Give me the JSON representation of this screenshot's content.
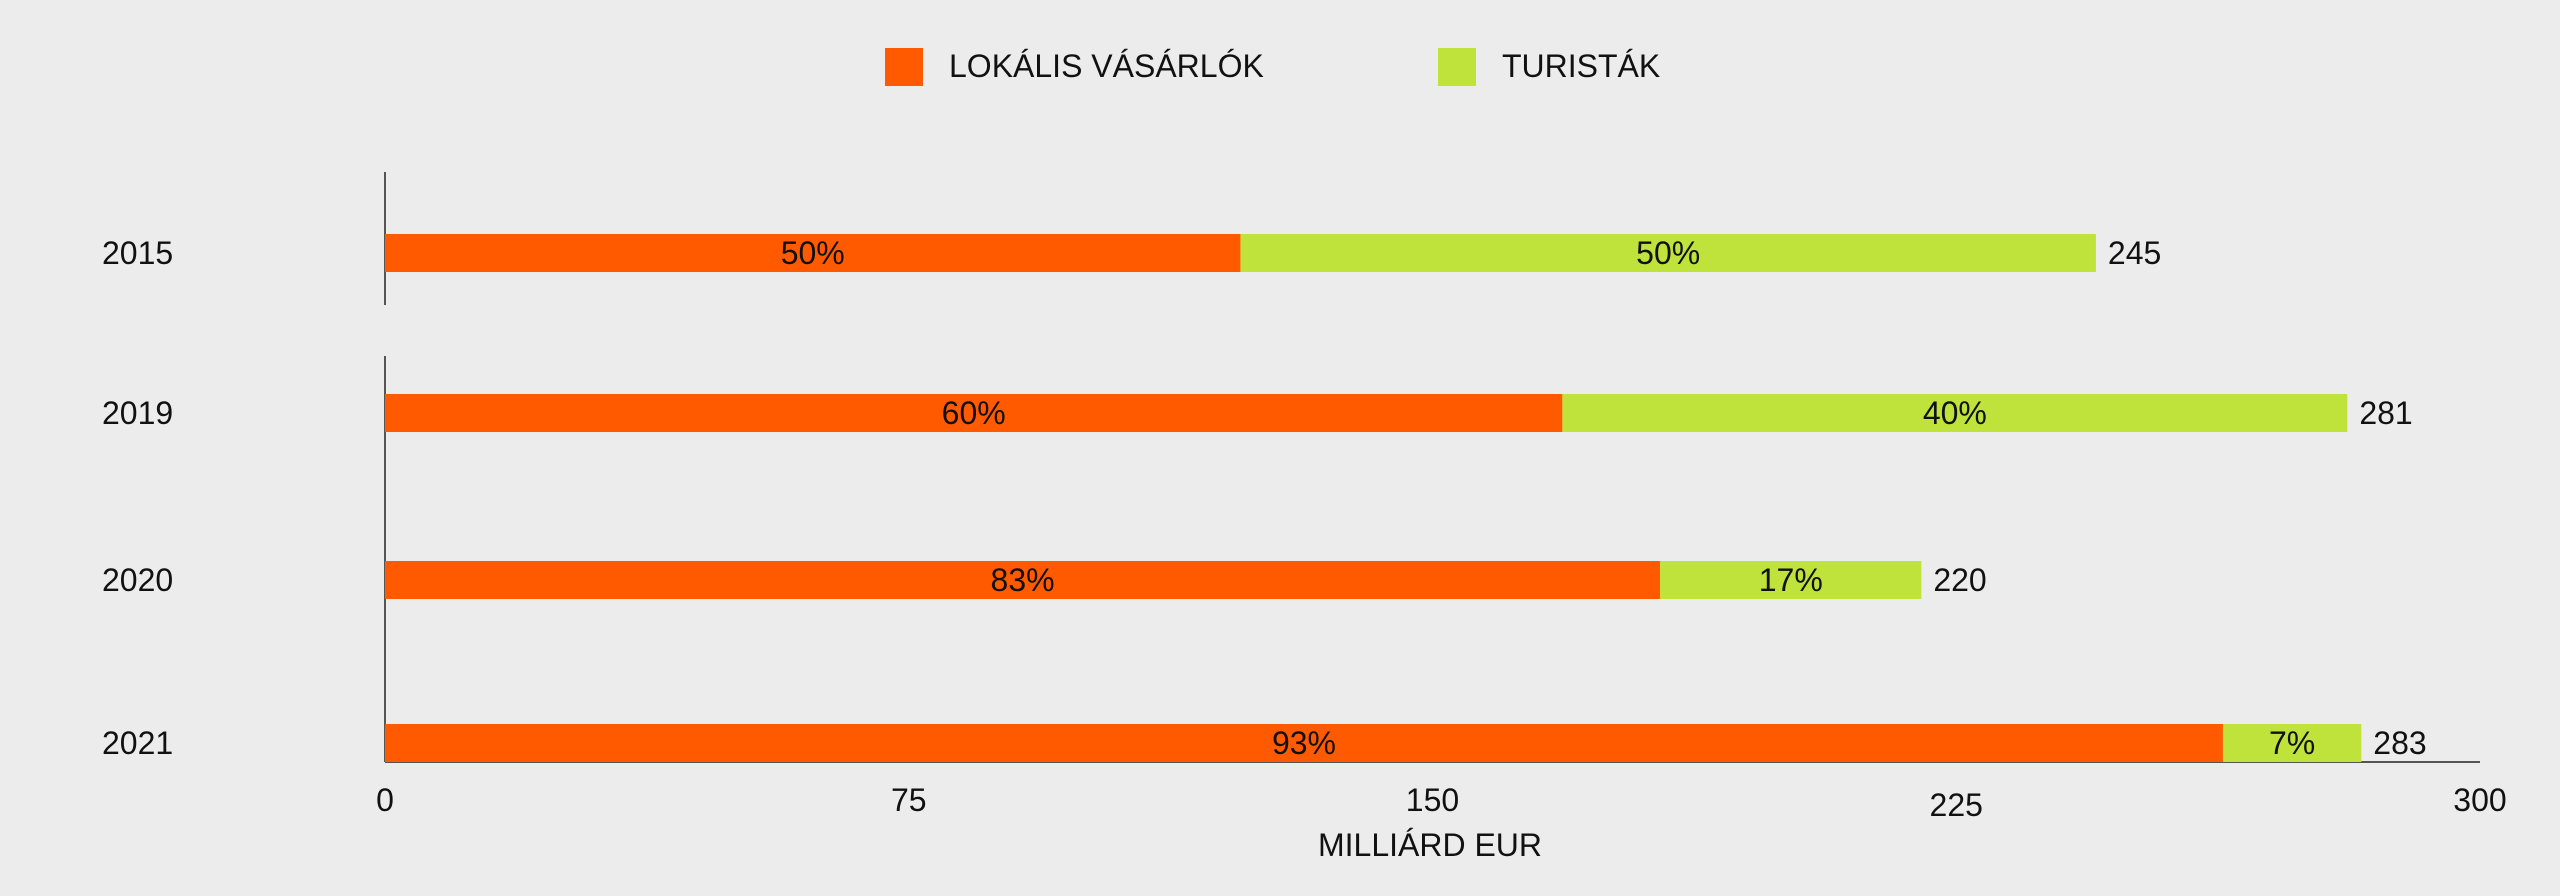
{
  "chart_data": {
    "type": "bar",
    "orientation": "horizontal",
    "stacked": true,
    "categories": [
      "2015",
      "2019",
      "2020",
      "2021"
    ],
    "totals": [
      245,
      281,
      220,
      283
    ],
    "series": [
      {
        "name": "LOKÁLIS VÁSÁRLÓK",
        "color": "#ff5a00",
        "shares": [
          50,
          60,
          83,
          93
        ],
        "labels": [
          "50%",
          "60%",
          "83%",
          "93%"
        ]
      },
      {
        "name": "TURISTÁK",
        "color": "#bfe33a",
        "shares": [
          50,
          40,
          17,
          7
        ],
        "labels": [
          "50%",
          "40%",
          "17%",
          "7%"
        ]
      }
    ],
    "xlabel": "MILLIÁRD EUR",
    "xlim": [
      0,
      300
    ],
    "xticks": [
      "0",
      "75",
      "150",
      "225",
      "300"
    ],
    "legend_position": "top-center",
    "grid": false
  }
}
